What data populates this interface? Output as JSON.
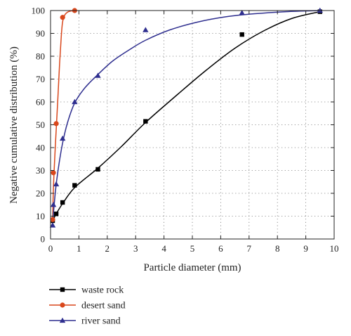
{
  "chart_data": {
    "type": "scatter",
    "xlabel": "Particle diameter (mm)",
    "ylabel": "Negative cumulative distribution (%)",
    "xlim": [
      0,
      10
    ],
    "ylim": [
      0,
      100
    ],
    "xticks": [
      0,
      1,
      2,
      3,
      4,
      5,
      6,
      7,
      8,
      9,
      10
    ],
    "yticks": [
      0,
      10,
      20,
      30,
      40,
      50,
      60,
      70,
      80,
      90,
      100
    ],
    "grid": true,
    "legend_position": "bottom-left",
    "series": [
      {
        "name": "waste rock",
        "color": "#000000",
        "marker": "square",
        "points": [
          {
            "x": 0.075,
            "y": 8
          },
          {
            "x": 0.2,
            "y": 11
          },
          {
            "x": 0.425,
            "y": 16
          },
          {
            "x": 0.85,
            "y": 23.5
          },
          {
            "x": 1.67,
            "y": 30.5
          },
          {
            "x": 3.35,
            "y": 51.5
          },
          {
            "x": 6.75,
            "y": 89.5
          },
          {
            "x": 9.5,
            "y": 99.5
          }
        ],
        "curve": [
          {
            "x": 0.075,
            "y": 8
          },
          {
            "x": 0.2,
            "y": 11
          },
          {
            "x": 0.425,
            "y": 15.5
          },
          {
            "x": 0.85,
            "y": 22.5
          },
          {
            "x": 1.67,
            "y": 31
          },
          {
            "x": 2.5,
            "y": 40.5
          },
          {
            "x": 3.35,
            "y": 51
          },
          {
            "x": 4.5,
            "y": 63.5
          },
          {
            "x": 5.5,
            "y": 74
          },
          {
            "x": 6.5,
            "y": 83.5
          },
          {
            "x": 7.5,
            "y": 91
          },
          {
            "x": 8.5,
            "y": 96.5
          },
          {
            "x": 9.5,
            "y": 99.5
          }
        ]
      },
      {
        "name": "desert sand",
        "color": "#d9471c",
        "marker": "circle",
        "points": [
          {
            "x": 0.075,
            "y": 8.5
          },
          {
            "x": 0.1,
            "y": 29
          },
          {
            "x": 0.2,
            "y": 50.5
          },
          {
            "x": 0.425,
            "y": 97
          },
          {
            "x": 0.85,
            "y": 100
          }
        ],
        "curve": [
          {
            "x": 0.075,
            "y": 8.5
          },
          {
            "x": 0.1,
            "y": 22
          },
          {
            "x": 0.15,
            "y": 36
          },
          {
            "x": 0.2,
            "y": 48
          },
          {
            "x": 0.26,
            "y": 62
          },
          {
            "x": 0.32,
            "y": 77
          },
          {
            "x": 0.38,
            "y": 89
          },
          {
            "x": 0.425,
            "y": 95
          },
          {
            "x": 0.5,
            "y": 98
          },
          {
            "x": 0.6,
            "y": 99.3
          },
          {
            "x": 0.72,
            "y": 99.8
          },
          {
            "x": 0.85,
            "y": 100
          }
        ]
      },
      {
        "name": "river sand",
        "color": "#2f2f8f",
        "marker": "triangle",
        "points": [
          {
            "x": 0.075,
            "y": 6
          },
          {
            "x": 0.1,
            "y": 15
          },
          {
            "x": 0.2,
            "y": 24
          },
          {
            "x": 0.425,
            "y": 44
          },
          {
            "x": 0.85,
            "y": 60
          },
          {
            "x": 1.67,
            "y": 71.5
          },
          {
            "x": 3.35,
            "y": 91.5
          },
          {
            "x": 6.75,
            "y": 99
          },
          {
            "x": 9.5,
            "y": 100
          }
        ],
        "curve": [
          {
            "x": 0.075,
            "y": 6
          },
          {
            "x": 0.1,
            "y": 11
          },
          {
            "x": 0.15,
            "y": 18
          },
          {
            "x": 0.2,
            "y": 24
          },
          {
            "x": 0.3,
            "y": 33
          },
          {
            "x": 0.425,
            "y": 42
          },
          {
            "x": 0.6,
            "y": 51
          },
          {
            "x": 0.85,
            "y": 59.5
          },
          {
            "x": 1.2,
            "y": 66
          },
          {
            "x": 1.67,
            "y": 72
          },
          {
            "x": 2.2,
            "y": 78
          },
          {
            "x": 2.8,
            "y": 83
          },
          {
            "x": 3.35,
            "y": 87
          },
          {
            "x": 4.2,
            "y": 91.5
          },
          {
            "x": 5.2,
            "y": 95
          },
          {
            "x": 6.2,
            "y": 97.3
          },
          {
            "x": 7.2,
            "y": 98.6
          },
          {
            "x": 8.3,
            "y": 99.5
          },
          {
            "x": 9.5,
            "y": 100
          }
        ]
      }
    ]
  }
}
